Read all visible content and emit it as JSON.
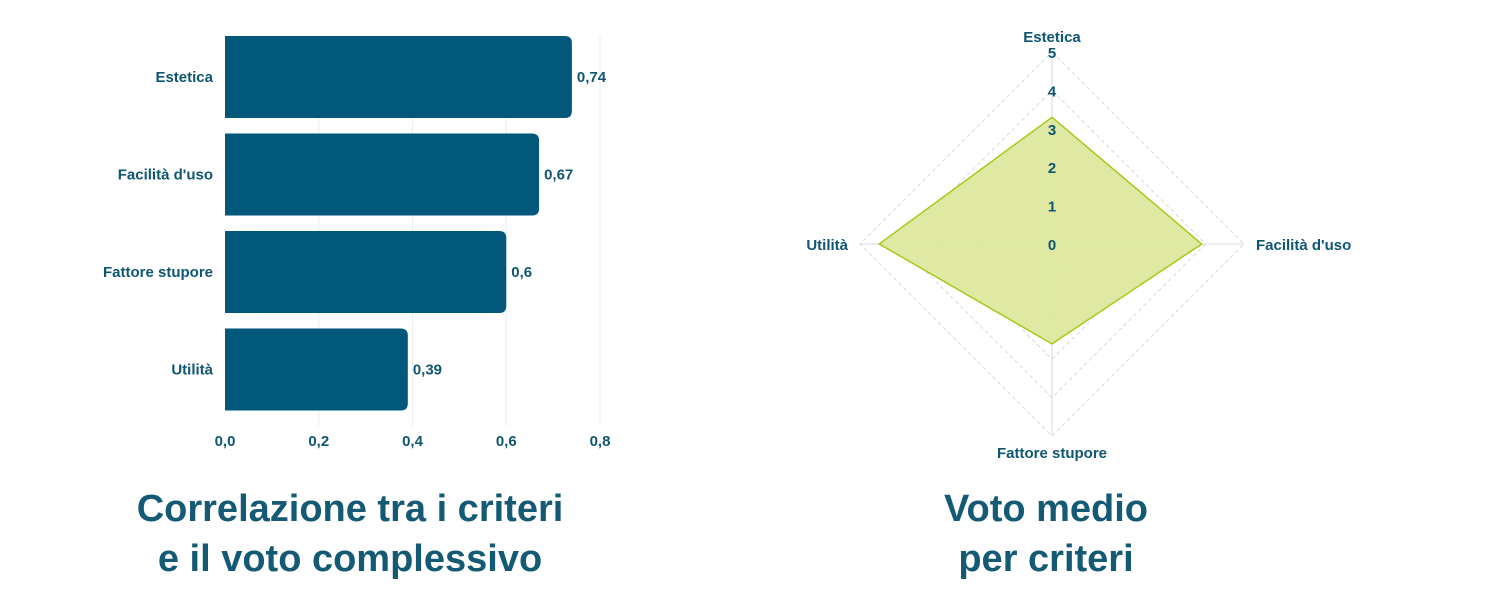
{
  "colors": {
    "bar": "#02587a",
    "text": "#0f5672",
    "title": "#145a74",
    "radar_fill": "#dce79a",
    "radar_stroke": "#a8c81a",
    "grid": "#d5dadd"
  },
  "chart_data": [
    {
      "type": "bar",
      "orientation": "horizontal",
      "categories": [
        "Estetica",
        "Facilità d'uso",
        "Fattore stupore",
        "Utilità"
      ],
      "values": [
        0.74,
        0.67,
        0.6,
        0.39
      ],
      "value_labels": [
        "0,74",
        "0,67",
        "0,6",
        "0,39"
      ],
      "xlim": [
        0,
        0.8
      ],
      "xticks": [
        0,
        0.2,
        0.4,
        0.6,
        0.8
      ],
      "xtick_labels": [
        "0,0",
        "0,2",
        "0,4",
        "0,6",
        "0,8"
      ],
      "grid": "vertical",
      "title_lines": [
        "Correlazione tra i criteri",
        "e il voto complessivo"
      ]
    },
    {
      "type": "radar",
      "axes": [
        "Estetica",
        "Facilità d'uso",
        "Fattore stupore",
        "Utilità"
      ],
      "values": [
        3.3,
        3.9,
        2.6,
        4.5
      ],
      "rlim": [
        0,
        5
      ],
      "rticks": [
        0,
        1,
        2,
        3,
        4,
        5
      ],
      "rtick_labels": [
        "0",
        "1",
        "2",
        "3",
        "4",
        "5"
      ],
      "title_lines": [
        "Voto medio",
        "per criteri"
      ]
    }
  ]
}
